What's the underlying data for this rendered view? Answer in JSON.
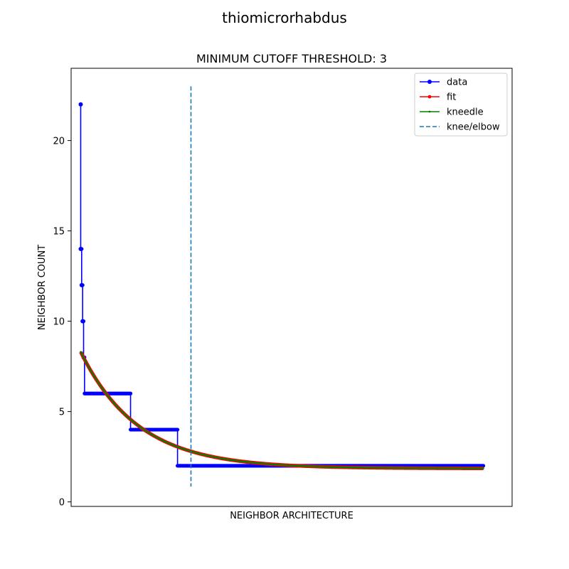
{
  "figure": {
    "suptitle": "thiomicrorhabdus",
    "background": "#ffffff"
  },
  "chart_data": {
    "type": "line",
    "title": "MINIMUM CUTOFF THRESHOLD: 3",
    "xlabel": "NEIGHBOR ARCHITECTURE",
    "ylabel": "NEIGHBOR COUNT",
    "xlim": [
      -10,
      450
    ],
    "ylim": [
      -0.25,
      24
    ],
    "x_ticks_visible": false,
    "yticks": [
      0,
      5,
      10,
      15,
      20
    ],
    "ytick_labels": [
      "0",
      "5",
      "10",
      "15",
      "20"
    ],
    "grid": false,
    "legend_position": "top-right",
    "series": [
      {
        "name": "data",
        "color": "#0000ff",
        "marker": "circle",
        "points": [
          [
            0,
            22
          ],
          [
            0,
            14
          ],
          [
            1,
            14
          ],
          [
            1,
            12
          ],
          [
            2,
            12
          ],
          [
            2,
            10
          ],
          [
            3,
            10
          ],
          [
            3,
            8
          ],
          [
            4,
            8
          ],
          [
            4,
            6
          ],
          [
            52,
            6
          ],
          [
            52,
            4
          ],
          [
            101,
            4
          ],
          [
            101,
            2
          ],
          [
            420,
            2
          ]
        ]
      },
      {
        "name": "fit",
        "color": "#ff0000",
        "marker": "circle-small",
        "fit": {
          "form": "a*exp(-x/tau)+c",
          "a": 6.45,
          "tau": 60,
          "c": 1.85,
          "x_start": 0,
          "x_end": 420
        }
      },
      {
        "name": "kneedle",
        "color": "#008000",
        "marker": "dot",
        "fit": {
          "form": "a*exp(-x/tau)+c",
          "a": 6.45,
          "tau": 60,
          "c": 1.85,
          "x_start": 0,
          "x_end": 420
        }
      },
      {
        "name": "knee/elbow",
        "color": "#1f77b4",
        "style": "dashed",
        "x": 115,
        "y_range": [
          0.85,
          23
        ]
      }
    ]
  }
}
